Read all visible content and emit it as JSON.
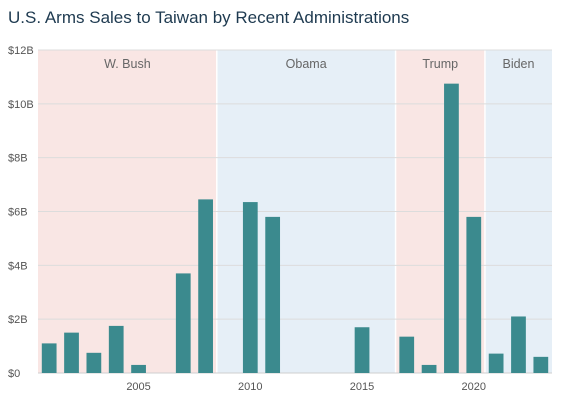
{
  "title": "U.S. Arms Sales to Taiwan by Recent Administrations",
  "colors": {
    "bar": "#3b8a8e",
    "republican_band": "#f9e6e4",
    "democratic_band": "#e6eff7",
    "grid": "#dcdcdc",
    "text": "#555555",
    "title": "#1e3a50"
  },
  "chart_data": {
    "type": "bar",
    "title": "U.S. Arms Sales to Taiwan by Recent Administrations",
    "xlabel": "",
    "ylabel": "",
    "x": [
      2001,
      2002,
      2003,
      2004,
      2005,
      2006,
      2007,
      2008,
      2009,
      2010,
      2011,
      2012,
      2013,
      2014,
      2015,
      2016,
      2017,
      2018,
      2019,
      2020,
      2021,
      2022,
      2023
    ],
    "values": [
      1.1,
      1.5,
      0.75,
      1.75,
      0.3,
      0,
      3.7,
      6.45,
      0,
      6.35,
      5.8,
      0,
      0,
      0,
      1.7,
      0,
      1.35,
      0.3,
      10.75,
      5.8,
      0.72,
      2.1,
      0.6
    ],
    "ylim": [
      0,
      12
    ],
    "xlim": [
      2000.5,
      2023.5
    ],
    "y_ticks": [
      0,
      2,
      4,
      6,
      8,
      10,
      12
    ],
    "y_tick_labels": [
      "$0",
      "$2B",
      "$4B",
      "$6B",
      "$8B",
      "$10B",
      "$12B"
    ],
    "x_ticks": [
      2005,
      2010,
      2015,
      2020
    ],
    "x_tick_labels": [
      "2005",
      "2010",
      "2015",
      "2020"
    ],
    "grid": true,
    "administrations": [
      {
        "name": "W. Bush",
        "start": 2000.5,
        "end": 2008.5,
        "party": "republican"
      },
      {
        "name": "Obama",
        "start": 2008.5,
        "end": 2016.5,
        "party": "democratic"
      },
      {
        "name": "Trump",
        "start": 2016.5,
        "end": 2020.5,
        "party": "republican"
      },
      {
        "name": "Biden",
        "start": 2020.5,
        "end": 2023.5,
        "party": "democratic"
      }
    ]
  }
}
